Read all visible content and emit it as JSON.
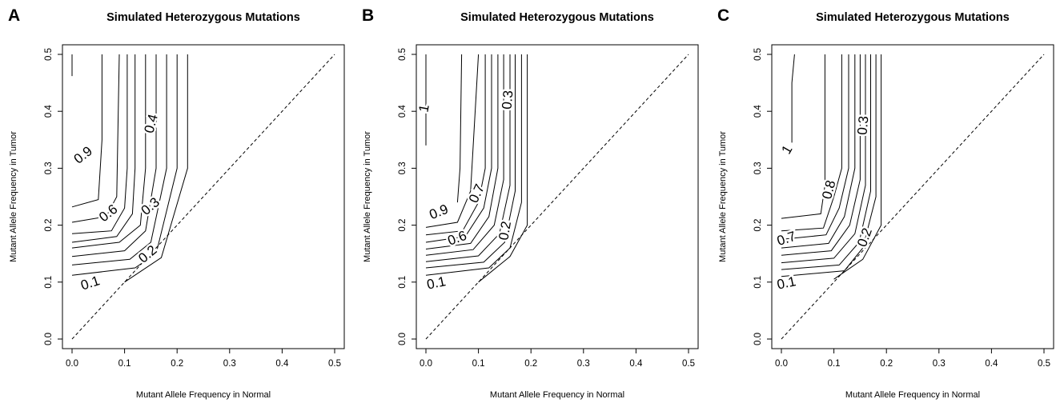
{
  "figure": {
    "panels": [
      "A",
      "B",
      "C"
    ],
    "title": "Simulated Heterozygous Mutations",
    "xlabel": "Mutant Allele Frequency in Normal",
    "ylabel": "Mutant Allele Frequency in Tumor"
  },
  "chart_data": [
    {
      "panel": "A",
      "type": "contour",
      "title": "Simulated Heterozygous Mutations",
      "xlabel": "Mutant Allele Frequency in Normal",
      "ylabel": "Mutant Allele Frequency in Tumor",
      "xlim": [
        0,
        0.5
      ],
      "ylim": [
        0,
        0.5
      ],
      "xticks": [
        "0.0",
        "0.1",
        "0.2",
        "0.3",
        "0.4",
        "0.5"
      ],
      "yticks": [
        "0.0",
        "0.1",
        "0.2",
        "0.3",
        "0.4",
        "0.5"
      ],
      "reference_line": {
        "style": "dashed",
        "from": [
          0,
          0
        ],
        "to": [
          0.5,
          0.5
        ]
      },
      "contours": [
        {
          "level": 0.1,
          "points": [
            [
              0.1,
              0.1
            ],
            [
              0.17,
              0.143
            ],
            [
              0.22,
              0.3
            ],
            [
              0.22,
              0.5
            ]
          ]
        },
        {
          "level": 0.2,
          "points": [
            [
              0.0,
              0.112
            ],
            [
              0.12,
              0.125
            ],
            [
              0.16,
              0.15
            ],
            [
              0.2,
              0.3
            ],
            [
              0.2,
              0.5
            ]
          ]
        },
        {
          "level": 0.3,
          "points": [
            [
              0.0,
              0.13
            ],
            [
              0.11,
              0.14
            ],
            [
              0.15,
              0.17
            ],
            [
              0.18,
              0.3
            ],
            [
              0.18,
              0.5
            ]
          ]
        },
        {
          "level": 0.4,
          "points": [
            [
              0.0,
              0.145
            ],
            [
              0.1,
              0.155
            ],
            [
              0.14,
              0.19
            ],
            [
              0.16,
              0.3
            ],
            [
              0.16,
              0.5
            ]
          ]
        },
        {
          "level": 0.5,
          "points": [
            [
              0.0,
              0.16
            ],
            [
              0.09,
              0.17
            ],
            [
              0.13,
              0.2
            ],
            [
              0.14,
              0.3
            ],
            [
              0.14,
              0.5
            ]
          ]
        },
        {
          "level": 0.6,
          "points": [
            [
              0.0,
              0.17
            ],
            [
              0.085,
              0.18
            ],
            [
              0.115,
              0.22
            ],
            [
              0.12,
              0.3
            ],
            [
              0.12,
              0.5
            ]
          ]
        },
        {
          "level": 0.7,
          "points": [
            [
              0.0,
              0.185
            ],
            [
              0.075,
              0.19
            ],
            [
              0.1,
              0.23
            ],
            [
              0.105,
              0.3
            ],
            [
              0.105,
              0.5
            ]
          ]
        },
        {
          "level": 0.8,
          "points": [
            [
              0.0,
              0.205
            ],
            [
              0.065,
              0.215
            ],
            [
              0.085,
              0.25
            ],
            [
              0.09,
              0.5
            ]
          ]
        },
        {
          "level": 0.9,
          "points": [
            [
              0.0,
              0.232
            ],
            [
              0.05,
              0.245
            ],
            [
              0.057,
              0.35
            ],
            [
              0.057,
              0.5
            ]
          ]
        },
        {
          "level": 1.0,
          "points": [
            [
              0.0,
              0.462
            ],
            [
              0.0,
              0.5
            ]
          ]
        }
      ],
      "contour_labels": [
        {
          "text": "0.1",
          "at": [
            0.035,
            0.097
          ],
          "rotate": -18
        },
        {
          "text": "0.2",
          "at": [
            0.145,
            0.148
          ],
          "rotate": -40
        },
        {
          "text": "0.3",
          "at": [
            0.15,
            0.232
          ],
          "rotate": -40
        },
        {
          "text": "0.4",
          "at": [
            0.152,
            0.378
          ],
          "rotate": -75
        },
        {
          "text": "0.6",
          "at": [
            0.07,
            0.22
          ],
          "rotate": -38
        },
        {
          "text": "0.9",
          "at": [
            0.022,
            0.322
          ],
          "rotate": -38
        }
      ]
    },
    {
      "panel": "B",
      "type": "contour",
      "title": "Simulated Heterozygous Mutations",
      "xlabel": "Mutant Allele Frequency in Normal",
      "ylabel": "Mutant Allele Frequency in Tumor",
      "xlim": [
        0,
        0.5
      ],
      "ylim": [
        0,
        0.5
      ],
      "xticks": [
        "0.0",
        "0.1",
        "0.2",
        "0.3",
        "0.4",
        "0.5"
      ],
      "yticks": [
        "0.0",
        "0.1",
        "0.2",
        "0.3",
        "0.4",
        "0.5"
      ],
      "reference_line": {
        "style": "dashed",
        "from": [
          0,
          0
        ],
        "to": [
          0.5,
          0.5
        ]
      },
      "contours": [
        {
          "level": 0.1,
          "points": [
            [
              0.1,
              0.1
            ],
            [
              0.16,
              0.145
            ],
            [
              0.193,
              0.2
            ],
            [
              0.193,
              0.5
            ]
          ]
        },
        {
          "level": 0.2,
          "points": [
            [
              0.0,
              0.112
            ],
            [
              0.12,
              0.125
            ],
            [
              0.16,
              0.16
            ],
            [
              0.182,
              0.24
            ],
            [
              0.182,
              0.5
            ]
          ]
        },
        {
          "level": 0.3,
          "points": [
            [
              0.0,
              0.125
            ],
            [
              0.11,
              0.135
            ],
            [
              0.15,
              0.17
            ],
            [
              0.17,
              0.26
            ],
            [
              0.17,
              0.5
            ]
          ]
        },
        {
          "level": 0.4,
          "points": [
            [
              0.0,
              0.136
            ],
            [
              0.1,
              0.146
            ],
            [
              0.14,
              0.185
            ],
            [
              0.16,
              0.27
            ],
            [
              0.16,
              0.5
            ]
          ]
        },
        {
          "level": 0.5,
          "points": [
            [
              0.0,
              0.147
            ],
            [
              0.09,
              0.157
            ],
            [
              0.13,
              0.2
            ],
            [
              0.148,
              0.28
            ],
            [
              0.148,
              0.5
            ]
          ]
        },
        {
          "level": 0.6,
          "points": [
            [
              0.0,
              0.158
            ],
            [
              0.085,
              0.168
            ],
            [
              0.12,
              0.215
            ],
            [
              0.137,
              0.3
            ],
            [
              0.137,
              0.5
            ]
          ]
        },
        {
          "level": 0.7,
          "points": [
            [
              0.0,
              0.17
            ],
            [
              0.075,
              0.18
            ],
            [
              0.11,
              0.23
            ],
            [
              0.125,
              0.3
            ],
            [
              0.125,
              0.5
            ]
          ]
        },
        {
          "level": 0.8,
          "points": [
            [
              0.0,
              0.183
            ],
            [
              0.07,
              0.19
            ],
            [
              0.1,
              0.24
            ],
            [
              0.113,
              0.3
            ],
            [
              0.113,
              0.5
            ]
          ]
        },
        {
          "level": 0.9,
          "points": [
            [
              0.0,
              0.196
            ],
            [
              0.06,
              0.205
            ],
            [
              0.085,
              0.26
            ],
            [
              0.1,
              0.5
            ]
          ]
        },
        {
          "level": 0.95,
          "points": [
            [
              0.06,
              0.24
            ],
            [
              0.065,
              0.3
            ],
            [
              0.068,
              0.5
            ]
          ]
        },
        {
          "level": 1.0,
          "points": [
            [
              0.0,
              0.34
            ],
            [
              0.0,
              0.5
            ]
          ]
        }
      ],
      "contour_labels": [
        {
          "text": "0.1",
          "at": [
            0.02,
            0.097
          ],
          "rotate": -12
        },
        {
          "text": "0.2",
          "at": [
            0.152,
            0.19
          ],
          "rotate": -80
        },
        {
          "text": "0.6",
          "at": [
            0.06,
            0.176
          ],
          "rotate": -20
        },
        {
          "text": "0.7",
          "at": [
            0.098,
            0.255
          ],
          "rotate": -65
        },
        {
          "text": "0.9",
          "at": [
            0.025,
            0.222
          ],
          "rotate": -22
        },
        {
          "text": "0.3",
          "at": [
            0.157,
            0.42
          ],
          "rotate": -85
        },
        {
          "text": "1",
          "at": [
            -0.002,
            0.405
          ],
          "rotate": -80
        }
      ]
    },
    {
      "panel": "C",
      "type": "contour",
      "title": "Simulated Heterozygous Mutations",
      "xlabel": "Mutant Allele Frequency in Normal",
      "ylabel": "Mutant Allele Frequency in Tumor",
      "xlim": [
        0,
        0.5
      ],
      "ylim": [
        0,
        0.5
      ],
      "xticks": [
        "0.0",
        "0.1",
        "0.2",
        "0.3",
        "0.4",
        "0.5"
      ],
      "yticks": [
        "0.0",
        "0.1",
        "0.2",
        "0.3",
        "0.4",
        "0.5"
      ],
      "reference_line": {
        "style": "dashed",
        "from": [
          0,
          0
        ],
        "to": [
          0.5,
          0.5
        ]
      },
      "contours": [
        {
          "level": 0.1,
          "points": [
            [
              0.1,
              0.105
            ],
            [
              0.155,
              0.14
            ],
            [
              0.19,
              0.2
            ],
            [
              0.19,
              0.5
            ]
          ]
        },
        {
          "level": 0.2,
          "points": [
            [
              0.0,
              0.11
            ],
            [
              0.12,
              0.12
            ],
            [
              0.155,
              0.16
            ],
            [
              0.18,
              0.25
            ],
            [
              0.18,
              0.5
            ]
          ]
        },
        {
          "level": 0.3,
          "points": [
            [
              0.0,
              0.122
            ],
            [
              0.11,
              0.13
            ],
            [
              0.148,
              0.17
            ],
            [
              0.17,
              0.26
            ],
            [
              0.17,
              0.5
            ]
          ]
        },
        {
          "level": 0.4,
          "points": [
            [
              0.0,
              0.134
            ],
            [
              0.1,
              0.142
            ],
            [
              0.14,
              0.185
            ],
            [
              0.16,
              0.27
            ],
            [
              0.16,
              0.5
            ]
          ]
        },
        {
          "level": 0.5,
          "points": [
            [
              0.0,
              0.147
            ],
            [
              0.095,
              0.155
            ],
            [
              0.13,
              0.2
            ],
            [
              0.15,
              0.28
            ],
            [
              0.15,
              0.5
            ]
          ]
        },
        {
          "level": 0.6,
          "points": [
            [
              0.0,
              0.16
            ],
            [
              0.09,
              0.168
            ],
            [
              0.12,
              0.215
            ],
            [
              0.14,
              0.3
            ],
            [
              0.14,
              0.5
            ]
          ]
        },
        {
          "level": 0.7,
          "points": [
            [
              0.0,
              0.175
            ],
            [
              0.085,
              0.183
            ],
            [
              0.11,
              0.23
            ],
            [
              0.128,
              0.3
            ],
            [
              0.128,
              0.5
            ]
          ]
        },
        {
          "level": 0.8,
          "points": [
            [
              0.0,
              0.19
            ],
            [
              0.08,
              0.195
            ],
            [
              0.1,
              0.25
            ],
            [
              0.115,
              0.3
            ],
            [
              0.115,
              0.5
            ]
          ]
        },
        {
          "level": 0.9,
          "points": [
            [
              0.0,
              0.212
            ],
            [
              0.075,
              0.22
            ],
            [
              0.083,
              0.27
            ],
            [
              0.083,
              0.5
            ]
          ]
        },
        {
          "level": 1.0,
          "points": [
            [
              0.02,
              0.345
            ],
            [
              0.02,
              0.45
            ],
            [
              0.025,
              0.5
            ]
          ]
        }
      ],
      "contour_labels": [
        {
          "text": "0.1",
          "at": [
            0.01,
            0.097
          ],
          "rotate": -12
        },
        {
          "text": "0.2",
          "at": [
            0.16,
            0.178
          ],
          "rotate": -70
        },
        {
          "text": "0.7",
          "at": [
            0.01,
            0.175
          ],
          "rotate": -18
        },
        {
          "text": "0.8",
          "at": [
            0.092,
            0.262
          ],
          "rotate": -75
        },
        {
          "text": "0.3",
          "at": [
            0.157,
            0.375
          ],
          "rotate": -85
        },
        {
          "text": "1",
          "at": [
            0.012,
            0.332
          ],
          "rotate": -60
        }
      ]
    }
  ]
}
